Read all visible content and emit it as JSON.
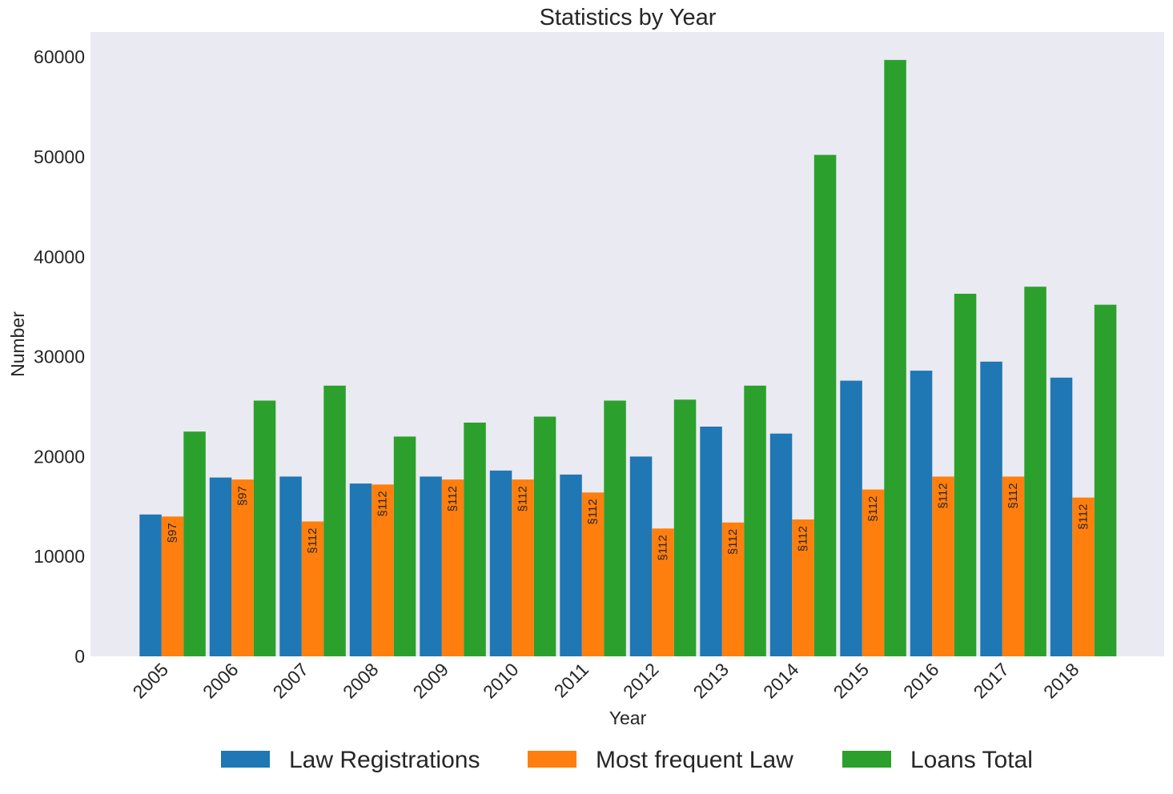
{
  "chart_data": {
    "type": "bar",
    "title": "Statistics by Year",
    "xlabel": "Year",
    "ylabel": "Number",
    "ylim": [
      0,
      62500
    ],
    "yticks": [
      0,
      10000,
      20000,
      30000,
      40000,
      50000,
      60000
    ],
    "ytick_labels": [
      "0",
      "10000",
      "20000",
      "30000",
      "40000",
      "50000",
      "60000"
    ],
    "categories": [
      "2005",
      "2006",
      "2007",
      "2008",
      "2009",
      "2010",
      "2011",
      "2012",
      "2013",
      "2014",
      "2015",
      "2016",
      "2017",
      "2018"
    ],
    "series": [
      {
        "name": "Law Registrations",
        "color": "#1f77b4",
        "values": [
          14200,
          17900,
          18000,
          17300,
          18000,
          18600,
          18200,
          20000,
          23000,
          22300,
          27600,
          28600,
          29500,
          27900
        ]
      },
      {
        "name": "Most frequent Law",
        "color": "#ff7f0e",
        "values": [
          14000,
          17700,
          13500,
          17200,
          17700,
          17700,
          16400,
          12800,
          13400,
          13700,
          16700,
          18000,
          18000,
          15900
        ],
        "bar_labels": [
          "§97",
          "§97",
          "§112",
          "§112",
          "§112",
          "§112",
          "§112",
          "§112",
          "§112",
          "§112",
          "§112",
          "§112",
          "§112",
          "§112"
        ]
      },
      {
        "name": "Loans Total",
        "color": "#2ca02c",
        "values": [
          22500,
          25600,
          27100,
          22000,
          23400,
          24000,
          25600,
          25700,
          27100,
          50200,
          59700,
          36300,
          37000,
          35200
        ]
      }
    ],
    "grid": false,
    "plot_background": "#eaeaf2",
    "legend_position": "bottom-center"
  }
}
